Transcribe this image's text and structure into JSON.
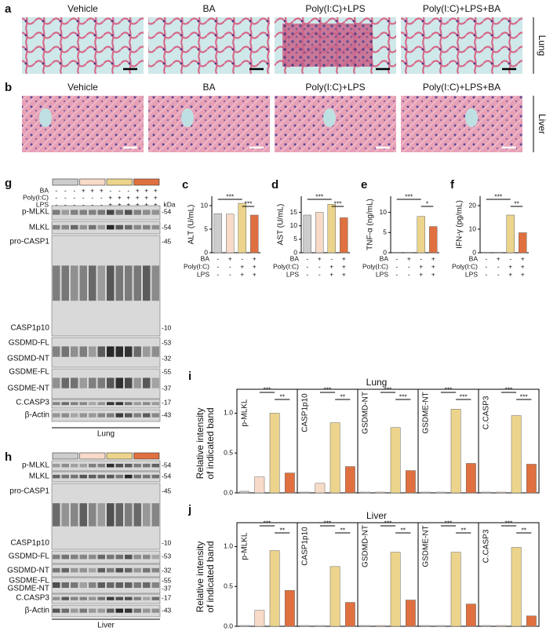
{
  "panel_a": {
    "label": "a",
    "titles": [
      "Vehicle",
      "BA",
      "Poly(I:C)+LPS",
      "Poly(I:C)+LPS+BA"
    ],
    "tissue": "Lung"
  },
  "panel_b": {
    "label": "b",
    "titles": [
      "Vehicle",
      "BA",
      "Poly(I:C)+LPS",
      "Poly(I:C)+LPS+BA"
    ],
    "tissue": "Liver"
  },
  "panel_g": {
    "label": "g",
    "unit": "kDa",
    "footer": "Lung",
    "treatments": [
      {
        "name": "BA",
        "signs": [
          "-",
          "-",
          "-",
          "+",
          "+",
          "+",
          "-",
          "-",
          "-",
          "+",
          "+",
          "+"
        ]
      },
      {
        "name": "Poly(I:C)",
        "signs": [
          "-",
          "-",
          "-",
          "-",
          "-",
          "-",
          "+",
          "+",
          "+",
          "+",
          "+",
          "+"
        ]
      },
      {
        "name": "LPS",
        "signs": [
          "-",
          "-",
          "-",
          "-",
          "-",
          "-",
          "+",
          "+",
          "+",
          "+",
          "+",
          "+"
        ]
      }
    ],
    "bands": [
      {
        "name": "p-MLKL",
        "kda": "-54"
      },
      {
        "name": "MLKL",
        "kda": "-54"
      },
      {
        "name": "pro-CASP1",
        "kda": "-45"
      },
      {
        "name": "CASP1p10",
        "kda": "-10"
      },
      {
        "name": "GSDMD-FL",
        "kda": "-53"
      },
      {
        "name": "GSDMD-NT",
        "kda": "-32"
      },
      {
        "name": "GSDME-FL",
        "kda": "-55"
      },
      {
        "name": "GSDME-NT",
        "kda": "-37"
      },
      {
        "name": "C.CASP3",
        "kda": "-17"
      },
      {
        "name": "β-Actin",
        "kda": "-43"
      }
    ]
  },
  "panel_h": {
    "label": "h",
    "footer": "Liver",
    "bands": [
      {
        "name": "p-MLKL",
        "kda": "-54"
      },
      {
        "name": "MLKL",
        "kda": "-54"
      },
      {
        "name": "pro-CASP1",
        "kda": "-45"
      },
      {
        "name": "CASP1p10",
        "kda": "-10"
      },
      {
        "name": "GSDMD-FL",
        "kda": "-53"
      },
      {
        "name": "GSDMD-NT",
        "kda": "-32"
      },
      {
        "name": "GSDME-FL",
        "kda": "-55"
      },
      {
        "name": "GSDME-NT",
        "kda": "-37"
      },
      {
        "name": "C.CASP3",
        "kda": "-17"
      },
      {
        "name": "β-Actin",
        "kda": "-43"
      }
    ]
  },
  "panel_labels": {
    "c": "c",
    "d": "d",
    "e": "e",
    "f": "f"
  },
  "panel_i": {
    "label": "i",
    "title": "Lung",
    "ylabel": [
      "Relative intensity",
      "of indicated band"
    ]
  },
  "panel_j": {
    "label": "j",
    "title": "Liver",
    "ylabel": [
      "Relative intensity",
      "of indicated band"
    ]
  },
  "chart_data": [
    {
      "type": "bar",
      "ylabel": "ALT (U/mL)",
      "values": [
        8.3,
        8.2,
        10.5,
        8.0
      ],
      "colors": [
        "#cdcdcd",
        "#f7dac8",
        "#ecd48c",
        "#e0703f"
      ],
      "ylim": [
        0,
        12
      ],
      "yticks": [
        0,
        5,
        10
      ],
      "annotations": [
        "***",
        "***"
      ],
      "sign_rows": [
        {
          "name": "BA",
          "signs": [
            "-",
            "+",
            "-",
            "+"
          ]
        },
        {
          "name": "Poly(I:C)",
          "signs": [
            "-",
            "-",
            "+",
            "+"
          ]
        },
        {
          "name": "LPS",
          "signs": [
            "-",
            "-",
            "+",
            "+"
          ]
        }
      ]
    },
    {
      "type": "bar",
      "ylabel": "AST (U/mL)",
      "values": [
        14,
        15,
        18,
        13
      ],
      "colors": [
        "#cdcdcd",
        "#f7dac8",
        "#ecd48c",
        "#e0703f"
      ],
      "ylim": [
        0,
        21
      ],
      "yticks": [
        0,
        5,
        10,
        15
      ],
      "annotations": [
        "***",
        "***"
      ],
      "sign_rows": [
        {
          "name": "BA",
          "signs": [
            "-",
            "+",
            "-",
            "+"
          ]
        },
        {
          "name": "Poly(I:C)",
          "signs": [
            "-",
            "-",
            "+",
            "+"
          ]
        },
        {
          "name": "LPS",
          "signs": [
            "-",
            "-",
            "+",
            "+"
          ]
        }
      ]
    },
    {
      "type": "bar",
      "ylabel": "TNF-α (ng/mL)",
      "values": [
        0.1,
        0.1,
        9,
        6.5
      ],
      "colors": [
        "#cdcdcd",
        "#f7dac8",
        "#ecd48c",
        "#e0703f"
      ],
      "ylim": [
        0,
        14
      ],
      "yticks": [
        0,
        5,
        10
      ],
      "annotations": [
        "***",
        "*"
      ],
      "sign_rows": [
        {
          "name": "BA",
          "signs": [
            "-",
            "+",
            "-",
            "+"
          ]
        },
        {
          "name": "Poly(I:C)",
          "signs": [
            "-",
            "-",
            "+",
            "+"
          ]
        },
        {
          "name": "LPS",
          "signs": [
            "-",
            "-",
            "+",
            "+"
          ]
        }
      ]
    },
    {
      "type": "bar",
      "ylabel": "IFN-γ (pg/mL)",
      "values": [
        0.2,
        0.2,
        16,
        8.5
      ],
      "colors": [
        "#cdcdcd",
        "#f7dac8",
        "#ecd48c",
        "#e0703f"
      ],
      "ylim": [
        0,
        24
      ],
      "yticks": [
        0,
        10,
        20
      ],
      "annotations": [
        "***",
        "**"
      ],
      "sign_rows": [
        {
          "name": "BA",
          "signs": [
            "-",
            "+",
            "-",
            "+"
          ]
        },
        {
          "name": "Poly(I:C)",
          "signs": [
            "-",
            "-",
            "+",
            "+"
          ]
        },
        {
          "name": "LPS",
          "signs": [
            "-",
            "-",
            "+",
            "+"
          ]
        }
      ]
    },
    {
      "type": "bar",
      "title": "p-MLKL",
      "values": [
        0.02,
        0.2,
        1.0,
        0.25
      ],
      "colors": [
        "#cdcdcd",
        "#f7dac8",
        "#ecd48c",
        "#e0703f"
      ],
      "ylim": [
        0,
        1.3
      ],
      "yticks": [
        {
          "value": 0,
          "label": "0.0"
        },
        {
          "value": 0.5,
          "label": "0.5"
        },
        {
          "value": 1,
          "label": "1.0"
        }
      ],
      "annotations": [
        "***",
        "**"
      ]
    },
    {
      "type": "bar",
      "title": "CASP1p10",
      "values": [
        0.01,
        0.12,
        0.88,
        0.33
      ],
      "colors": [
        "#cdcdcd",
        "#f7dac8",
        "#ecd48c",
        "#e0703f"
      ],
      "ylim": [
        0,
        1.3
      ],
      "annotations": [
        "***",
        "**"
      ]
    },
    {
      "type": "bar",
      "title": "GSDMD-NT",
      "values": [
        0.01,
        0.01,
        0.82,
        0.28
      ],
      "colors": [
        "#cdcdcd",
        "#f7dac8",
        "#ecd48c",
        "#e0703f"
      ],
      "ylim": [
        0,
        1.3
      ],
      "annotations": [
        "***",
        "***"
      ]
    },
    {
      "type": "bar",
      "title": "GSDME-NT",
      "values": [
        0.01,
        0.01,
        1.05,
        0.37
      ],
      "colors": [
        "#cdcdcd",
        "#f7dac8",
        "#ecd48c",
        "#e0703f"
      ],
      "ylim": [
        0,
        1.3
      ],
      "annotations": [
        "***",
        "***"
      ]
    },
    {
      "type": "bar",
      "title": "C.CASP3",
      "values": [
        0.01,
        0.01,
        0.97,
        0.36
      ],
      "colors": [
        "#cdcdcd",
        "#f7dac8",
        "#ecd48c",
        "#e0703f"
      ],
      "ylim": [
        0,
        1.3
      ],
      "annotations": [
        "***",
        "***"
      ]
    },
    {
      "type": "bar",
      "title": "p-MLKL",
      "values": [
        0.01,
        0.2,
        0.95,
        0.45
      ],
      "colors": [
        "#cdcdcd",
        "#f7dac8",
        "#ecd48c",
        "#e0703f"
      ],
      "ylim": [
        0,
        1.3
      ],
      "yticks": [
        {
          "value": 0,
          "label": "0.0"
        },
        {
          "value": 0.5,
          "label": "0.5"
        },
        {
          "value": 1,
          "label": "1.0"
        }
      ],
      "annotations": [
        "***",
        "**"
      ]
    },
    {
      "type": "bar",
      "title": "CASP1p10",
      "values": [
        0.01,
        0.01,
        0.75,
        0.3
      ],
      "colors": [
        "#cdcdcd",
        "#f7dac8",
        "#ecd48c",
        "#e0703f"
      ],
      "ylim": [
        0,
        1.3
      ],
      "annotations": [
        "***",
        "**"
      ]
    },
    {
      "type": "bar",
      "title": "GSDMD-NT",
      "values": [
        0.01,
        0.01,
        0.93,
        0.33
      ],
      "colors": [
        "#cdcdcd",
        "#f7dac8",
        "#ecd48c",
        "#e0703f"
      ],
      "ylim": [
        0,
        1.3
      ],
      "annotations": [
        "***",
        "**"
      ]
    },
    {
      "type": "bar",
      "title": "GSDME-NT",
      "values": [
        0.01,
        0.01,
        0.93,
        0.28
      ],
      "colors": [
        "#cdcdcd",
        "#f7dac8",
        "#ecd48c",
        "#e0703f"
      ],
      "ylim": [
        0,
        1.3
      ],
      "annotations": [
        "***",
        "**"
      ]
    },
    {
      "type": "bar",
      "title": "C.CASP3",
      "values": [
        0.01,
        0.01,
        0.99,
        0.13
      ],
      "colors": [
        "#cdcdcd",
        "#f7dac8",
        "#ecd48c",
        "#e0703f"
      ],
      "ylim": [
        0,
        1.3
      ],
      "annotations": [
        "***",
        "**"
      ]
    }
  ]
}
